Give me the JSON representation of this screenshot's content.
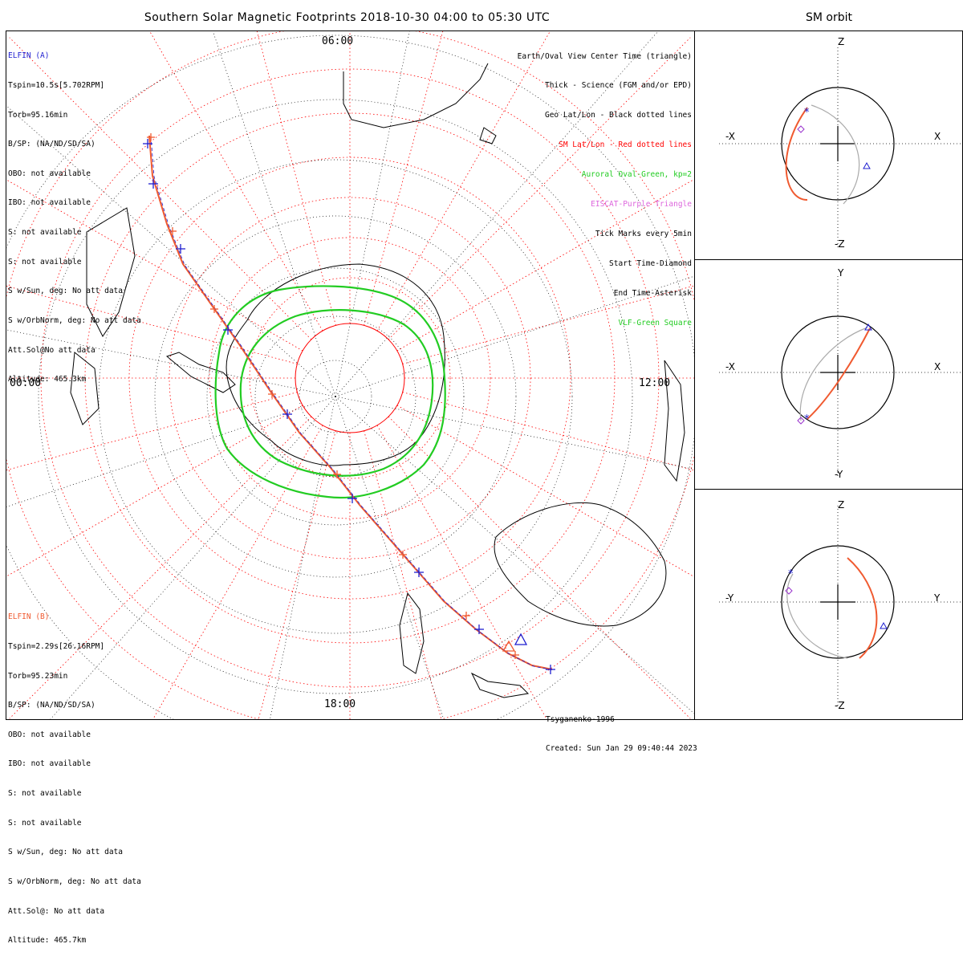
{
  "title": "Southern Solar Magnetic Footprints 2018-10-30 04:00 to 05:30 UTC",
  "side_title": "SM orbit",
  "hour_labels": {
    "top": "06:00",
    "left": "00:00",
    "right": "12:00",
    "bottom": "18:00"
  },
  "elfin_a": {
    "name": "ELFIN (A)",
    "color": "#1f1fd0",
    "lines": [
      "Tspin=10.5s[5.702RPM]",
      "Torb=95.16min",
      "B/SP: (NA/ND/SD/SA)",
      "OBO: not available",
      "IBO: not available",
      "S: not available",
      "S: not available",
      "S w/Sun, deg: No att data",
      "S w/OrbNorm, deg: No att data",
      "Att.Sol@No att data",
      "Altitude: 465.3km"
    ]
  },
  "elfin_b": {
    "name": "ELFIN (B)",
    "color": "#f05a30",
    "lines": [
      "Tspin=2.29s[26.16RPM]",
      "Torb=95.23min",
      "B/SP: (NA/ND/SD/SA)",
      "OBO: not available",
      "IBO: not available",
      "S: not available",
      "S: not available",
      "S w/Sun, deg: No att data",
      "S w/OrbNorm, deg: No att data",
      "Att.Sol@: No att data",
      "Altitude: 465.7km"
    ]
  },
  "legend": [
    {
      "text": "Earth/Oval View Center Time (triangle)",
      "color": "#000000"
    },
    {
      "text": "Thick - Science (FGM and/or EPD)",
      "color": "#000000"
    },
    {
      "text": "Geo Lat/Lon - Black dotted lines",
      "color": "#000000"
    },
    {
      "text": "SM Lat/Lon - Red dotted lines",
      "color": "#ff0000"
    },
    {
      "text": "Auroral Oval-Green, kp=2",
      "color": "#22cc22"
    },
    {
      "text": "EISCAT-Purple Triangle",
      "color": "#dd66dd"
    },
    {
      "text": "Tick Marks every 5min",
      "color": "#000000"
    },
    {
      "text": "Start Time-Diamond",
      "color": "#000000"
    },
    {
      "text": "End Time-Asterisk",
      "color": "#000000"
    },
    {
      "text": "VLF-Green Square",
      "color": "#22cc22"
    }
  ],
  "footer": {
    "model": "Tsyganenko-1996",
    "created": "Created: Sun Jan 29 09:40:44 2023"
  },
  "orbit_panels": [
    {
      "top": "Z",
      "bottom": "-Z",
      "left": "-X",
      "right": "X"
    },
    {
      "top": "Y",
      "bottom": "-Y",
      "left": "-X",
      "right": "X"
    },
    {
      "top": "Z",
      "bottom": "-Z",
      "left": "-Y",
      "right": "Y"
    }
  ],
  "colors": {
    "sm_grid": "#ff0000",
    "geo_grid": "#000000",
    "oval": "#22cc22",
    "track_a": "#1f1fd0",
    "track_b": "#f05a30",
    "orbit_ref": "#aaaaaa"
  }
}
